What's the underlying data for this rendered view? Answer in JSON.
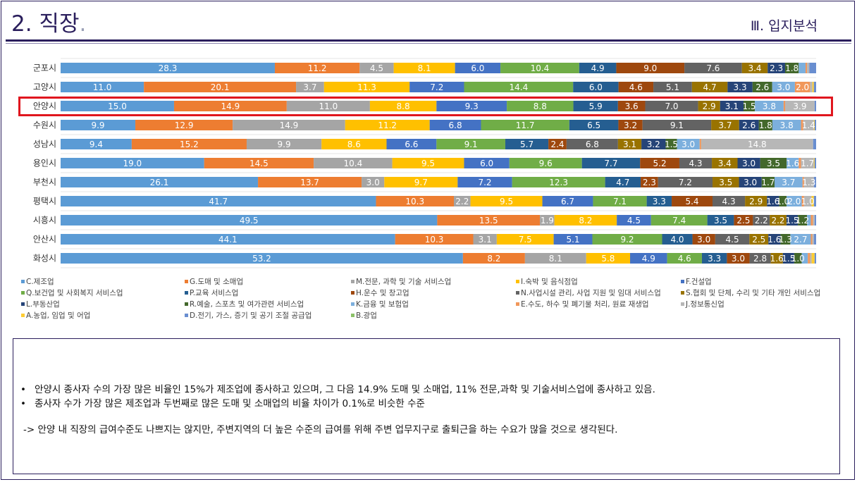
{
  "header": {
    "title": "2. 직장",
    "title_dot": ".",
    "section": "Ⅲ. 입지분석"
  },
  "notes": {
    "bullet": "•",
    "line1": "안양시 종사자 수의 가장 많은 비율인 15%가 제조업에 종사하고 있으며, 그 다음 14.9% 도매 및 소매업, 11% 전문,과학 및 기술서비스업에 종사하고 있음.",
    "line2": "종사자 수가 가장 많은 제조업과 두번째로 많은 도매 및 소매업의 비율 차이가 0.1%로 비슷한 수준",
    "line3": "-> 안양 내 직장의 급여수준도 나쁘지는 않지만, 주변지역의 더 높은 수준의 급여를 위해 주변 업무지구로 출퇴근을 하는 수요가 많을 것으로 생각된다."
  },
  "chart_data": {
    "type": "bar",
    "orientation": "horizontal",
    "stacked": "percent",
    "highlighted_category": "안양시",
    "categories": [
      "군포시",
      "고양시",
      "안양시",
      "수원시",
      "성남시",
      "용인시",
      "부천시",
      "평택시",
      "시흥시",
      "안산시",
      "화성시"
    ],
    "series": [
      {
        "name": "C.제조업",
        "color": "#5b9bd5",
        "values": [
          28.3,
          11.0,
          15.0,
          9.9,
          9.4,
          19.0,
          26.1,
          41.7,
          49.5,
          44.1,
          53.2
        ]
      },
      {
        "name": "G.도매 및 소매업",
        "color": "#ed7d31",
        "values": [
          11.2,
          20.1,
          14.9,
          12.9,
          15.2,
          14.5,
          13.7,
          10.3,
          13.5,
          10.3,
          8.2
        ]
      },
      {
        "name": "M.전문, 과학 및 기술 서비스업",
        "color": "#a5a5a5",
        "values": [
          4.5,
          3.7,
          11.0,
          14.9,
          9.9,
          10.4,
          3.0,
          2.2,
          1.9,
          3.1,
          8.1
        ]
      },
      {
        "name": "I.숙박 및 음식점업",
        "color": "#ffc000",
        "values": [
          8.1,
          11.3,
          8.8,
          11.2,
          8.6,
          9.5,
          9.7,
          9.5,
          8.2,
          7.5,
          5.8
        ]
      },
      {
        "name": "F.건설업",
        "color": "#4472c4",
        "values": [
          6.0,
          7.2,
          9.3,
          6.8,
          6.6,
          6.0,
          7.2,
          6.7,
          4.5,
          5.1,
          4.9
        ]
      },
      {
        "name": "Q.보건업 및 사회복지 서비스업",
        "color": "#70ad47",
        "values": [
          10.4,
          14.4,
          8.8,
          11.7,
          9.1,
          9.6,
          12.3,
          7.1,
          7.4,
          9.2,
          4.6
        ]
      },
      {
        "name": "P.교육 서비스업",
        "color": "#255e91",
        "values": [
          4.9,
          6.0,
          5.9,
          6.5,
          5.7,
          7.7,
          4.7,
          3.3,
          3.5,
          4.0,
          3.3
        ]
      },
      {
        "name": "H.운수 및 창고업",
        "color": "#9e480e",
        "values": [
          9.0,
          4.6,
          3.6,
          3.2,
          2.4,
          5.2,
          2.3,
          5.4,
          2.5,
          3.0,
          3.0
        ]
      },
      {
        "name": "N.사업시설 관리, 사업 지원 및 임대 서비스업",
        "color": "#636363",
        "values": [
          7.6,
          5.1,
          7.0,
          9.1,
          6.8,
          4.3,
          7.2,
          4.3,
          2.2,
          4.5,
          2.8
        ]
      },
      {
        "name": "S.협회 및 단체, 수리 및 기타 개인 서비스업",
        "color": "#997300",
        "values": [
          3.4,
          4.7,
          2.9,
          3.7,
          3.1,
          3.4,
          3.5,
          2.9,
          2.2,
          2.5,
          1.6
        ]
      },
      {
        "name": "L.부동산업",
        "color": "#264478",
        "values": [
          2.3,
          3.3,
          3.1,
          2.6,
          3.2,
          3.0,
          3.0,
          1.6,
          1.5,
          1.6,
          1.5
        ]
      },
      {
        "name": "R.예술, 스포츠 및 여가관련 서비스업",
        "color": "#43682b",
        "values": [
          1.8,
          2.6,
          1.5,
          1.8,
          1.5,
          3.5,
          1.7,
          1.0,
          1.2,
          1.3,
          1.0
        ]
      },
      {
        "name": "K.금융 및 보험업",
        "color": "#7cafdd",
        "values": [
          0.9,
          3.0,
          3.8,
          3.8,
          3.0,
          1.6,
          3.7,
          2.0,
          0.5,
          2.7,
          0.8
        ]
      },
      {
        "name": "E.수도, 하수 및 폐기물 처리, 원료 재생업",
        "color": "#f1975a",
        "values": [
          0.2,
          2.0,
          0.2,
          0.3,
          0.2,
          0.3,
          0.2,
          0.3,
          0.3,
          0.2,
          0.3
        ]
      },
      {
        "name": "J.정보통신업",
        "color": "#b7b7b7",
        "values": [
          0.3,
          0.3,
          3.9,
          1.4,
          14.8,
          1.7,
          1.3,
          1.0,
          0.2,
          0.2,
          0.2
        ]
      },
      {
        "name": "A.농업, 임업 및 어업",
        "color": "#ffcd33",
        "values": [
          0.0,
          0.2,
          0.0,
          0.1,
          0.0,
          0.1,
          0.0,
          0.3,
          0.0,
          0.0,
          0.4
        ]
      },
      {
        "name": "D.전기, 가스, 증기 및 공기 조절 공급업",
        "color": "#698ed0",
        "values": [
          0.9,
          0.3,
          0.2,
          0.2,
          0.4,
          0.2,
          0.3,
          0.3,
          0.2,
          0.3,
          0.2
        ]
      },
      {
        "name": "B.광업",
        "color": "#8cc168",
        "values": [
          0.0,
          0.0,
          0.0,
          0.0,
          0.0,
          0.0,
          0.0,
          0.0,
          0.0,
          0.0,
          0.0
        ]
      }
    ]
  }
}
